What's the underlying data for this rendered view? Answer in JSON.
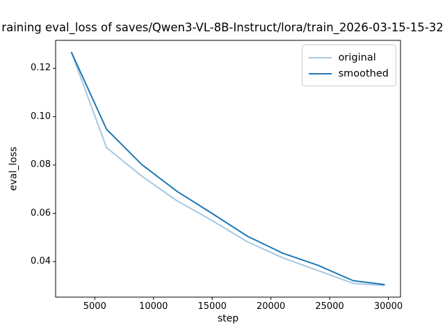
{
  "chart_data": {
    "type": "line",
    "title": "raining eval_loss of saves/Qwen3-VL-8B-Instruct/lora/train_2026-03-15-15-32",
    "xlabel": "step",
    "ylabel": "eval_loss",
    "x": [
      3000,
      6000,
      9000,
      12000,
      15000,
      18000,
      21000,
      24000,
      27000,
      29700
    ],
    "series": [
      {
        "name": "original",
        "color": "#a5c8e1",
        "values": [
          0.1268,
          0.0872,
          0.0754,
          0.0652,
          0.057,
          0.0482,
          0.0416,
          0.0363,
          0.031,
          0.0301
        ]
      },
      {
        "name": "smoothed",
        "color": "#1f77b4",
        "values": [
          0.1268,
          0.0948,
          0.0802,
          0.0691,
          0.0599,
          0.0505,
          0.0435,
          0.0385,
          0.0321,
          0.0305
        ]
      }
    ],
    "xticks": [
      5000,
      10000,
      15000,
      20000,
      25000,
      30000
    ],
    "yticks": [
      0.04,
      0.06,
      0.08,
      0.1,
      0.12
    ],
    "xlim": [
      1665,
      31035
    ],
    "ylim": [
      0.0253,
      0.1316
    ],
    "grid": false,
    "legend_position": "upper right",
    "axis_color": "#000000",
    "background": "#ffffff"
  }
}
